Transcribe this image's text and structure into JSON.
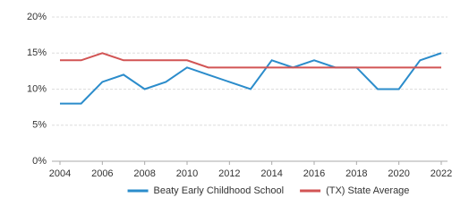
{
  "chart_data": {
    "type": "line",
    "x": [
      2004,
      2005,
      2006,
      2007,
      2008,
      2009,
      2010,
      2011,
      2012,
      2013,
      2014,
      2015,
      2016,
      2017,
      2018,
      2019,
      2020,
      2021,
      2022
    ],
    "series": [
      {
        "name": "Beaty Early Childhood School",
        "color": "#2b8ccb",
        "values": [
          8,
          8,
          11,
          12,
          10,
          11,
          13,
          12,
          11,
          10,
          14,
          13,
          14,
          13,
          13,
          10,
          10,
          14,
          15
        ]
      },
      {
        "name": "(TX) State Average",
        "color": "#d25454",
        "values": [
          14,
          14,
          15,
          14,
          14,
          14,
          14,
          13,
          13,
          13,
          13,
          13,
          13,
          13,
          13,
          13,
          13,
          13,
          13
        ]
      }
    ],
    "xlim": [
      2004,
      2022
    ],
    "xticks": [
      2004,
      2006,
      2008,
      2010,
      2012,
      2014,
      2016,
      2018,
      2020,
      2022
    ],
    "ylim": [
      0,
      20
    ],
    "yticks": [
      {
        "value": 0,
        "label": "0%"
      },
      {
        "value": 5,
        "label": "5%"
      },
      {
        "value": 10,
        "label": "10%"
      },
      {
        "value": 15,
        "label": "15%"
      },
      {
        "value": 20,
        "label": "20%"
      }
    ],
    "grid": true
  }
}
